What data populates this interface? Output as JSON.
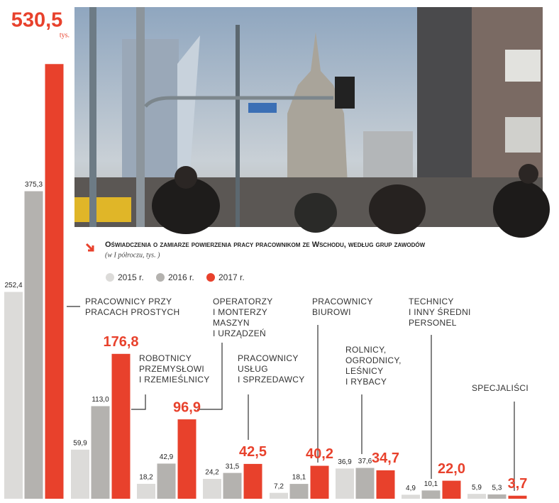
{
  "chart_data": {
    "type": "bar",
    "title": "Oświadczenia o zamiarze powierzenia pracy pracownikom ze Wschodu, według grup zawodów",
    "subtitle": "(w I półroczu, tys. )",
    "unit": "tys.",
    "categories": [
      "PRACOWNICY PRZY\nPRACACH PROSTYCH",
      "ROBOTNICY\nPRZEMYSŁOWI\nI RZEMIEŚLNICY",
      "OPERATORZY\nI MONTERZY\nMASZYN\nI URZĄDZEŃ",
      "PRACOWNICY\nUSŁUG\nI SPRZEDAWCY",
      "PRACOWNICY\nBIUROWI",
      "ROLNICY,\nOGRODNICY,\nLEŚNICY\nI RYBACY",
      "TECHNICY\nI INNY ŚREDNI\nPERSONEL",
      "SPECJALIŚCI"
    ],
    "series": [
      {
        "name": "2015 r.",
        "color": "#dcdbd9",
        "values": [
          252.4,
          59.9,
          18.2,
          24.2,
          7.2,
          36.9,
          4.9,
          5.9
        ],
        "value_labels": [
          "252,4",
          "59,9",
          "18,2",
          "24,2",
          "7,2",
          "36,9",
          "4,9",
          "5,9"
        ]
      },
      {
        "name": "2016 r.",
        "color": "#b4b2af",
        "values": [
          375.3,
          113.0,
          42.9,
          31.5,
          18.1,
          37.6,
          10.1,
          5.3
        ],
        "value_labels": [
          "375,3",
          "113,0",
          "42,9",
          "31,5",
          "18,1",
          "37,6",
          "10,1",
          "5,3"
        ]
      },
      {
        "name": "2017 r.",
        "color": "#e8412c",
        "values": [
          530.5,
          176.8,
          96.9,
          42.5,
          40.2,
          34.7,
          22.0,
          3.7
        ],
        "value_labels": [
          "530,5",
          "176,8",
          "96,9",
          "42,5",
          "40,2",
          "34,7",
          "22,0",
          "3,7"
        ]
      }
    ],
    "ylim": [
      0,
      600
    ]
  }
}
